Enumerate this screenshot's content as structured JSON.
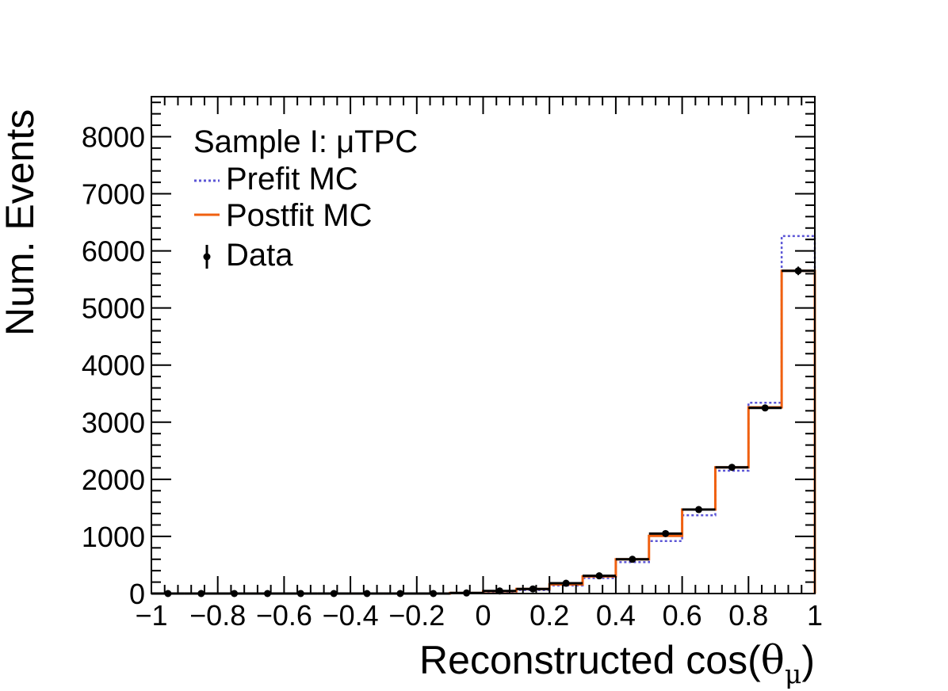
{
  "chart_data": {
    "type": "histogram",
    "title": "Sample I: μTPC",
    "xlabel": "Reconstructed cos(θ_μ)",
    "xlabel_main": "Reconstructed cos(",
    "xlabel_theta": "θ",
    "xlabel_sub": "μ",
    "xlabel_close": ")",
    "ylabel": "Num. Events",
    "xlim": [
      -1,
      1
    ],
    "ylim": [
      0,
      8700
    ],
    "x_ticks": [
      -1,
      -0.8,
      -0.6,
      -0.4,
      -0.2,
      0,
      0.2,
      0.4,
      0.6,
      0.8,
      1
    ],
    "x_tick_labels": [
      "−1",
      "−0.8",
      "−0.6",
      "−0.4",
      "−0.2",
      "0",
      "0.2",
      "0.4",
      "0.6",
      "0.8",
      "1"
    ],
    "y_ticks": [
      0,
      1000,
      2000,
      3000,
      4000,
      5000,
      6000,
      7000,
      8000
    ],
    "y_tick_labels": [
      "0",
      "1000",
      "2000",
      "3000",
      "4000",
      "5000",
      "6000",
      "7000",
      "8000"
    ],
    "bin_edges": [
      -1,
      -0.9,
      -0.8,
      -0.7,
      -0.6,
      -0.5,
      -0.4,
      -0.3,
      -0.2,
      -0.1,
      0,
      0.1,
      0.2,
      0.3,
      0.4,
      0.5,
      0.6,
      0.7,
      0.8,
      0.9,
      1
    ],
    "series": [
      {
        "name": "Prefit MC",
        "style": "dotted",
        "color": "#5b55d6",
        "values": [
          0,
          0,
          0,
          0,
          0,
          0,
          0,
          0,
          0,
          5,
          30,
          60,
          140,
          270,
          550,
          920,
          1370,
          2150,
          3340,
          6260
        ]
      },
      {
        "name": "Postfit MC",
        "style": "solid",
        "color": "#f06010",
        "values": [
          0,
          0,
          0,
          0,
          0,
          0,
          0,
          0,
          0,
          8,
          40,
          80,
          160,
          300,
          600,
          1010,
          1470,
          2210,
          3260,
          5650
        ]
      },
      {
        "name": "Data",
        "style": "points",
        "color": "#000000",
        "values": [
          0,
          0,
          0,
          0,
          0,
          0,
          0,
          0,
          0,
          10,
          45,
          80,
          180,
          310,
          600,
          1050,
          1470,
          2210,
          3250,
          5650
        ]
      }
    ],
    "legend": {
      "placement": "top-left",
      "title": "Sample I: μTPC",
      "entries": [
        "Prefit MC",
        "Postfit MC",
        "Data"
      ]
    }
  }
}
